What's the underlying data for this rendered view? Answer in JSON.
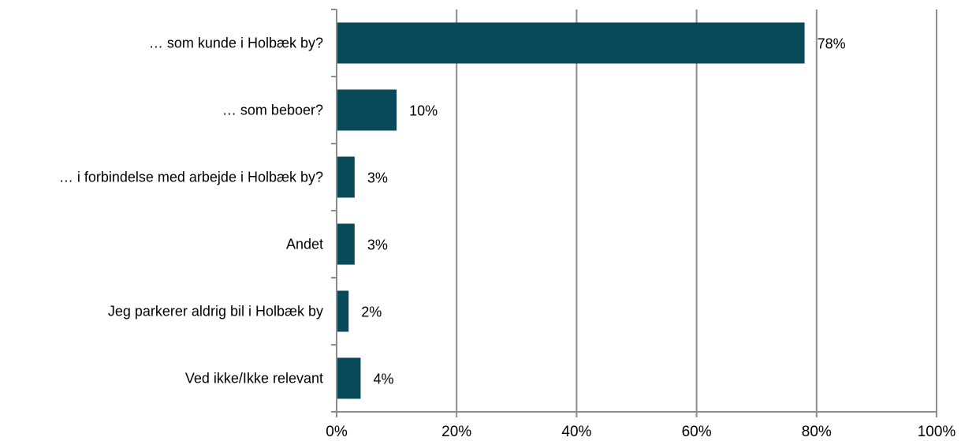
{
  "chart_data": {
    "type": "bar",
    "orientation": "horizontal",
    "title": "",
    "xlabel": "",
    "ylabel": "",
    "categories": [
      "… som kunde i Holbæk by?",
      "… som beboer?",
      "… i forbindelse med arbejde i Holbæk by?",
      "Andet",
      "Jeg parkerer aldrig bil i Holbæk by",
      "Ved ikke/Ikke relevant"
    ],
    "values": [
      78,
      10,
      3,
      3,
      2,
      4
    ],
    "value_labels": [
      "78%",
      "10%",
      "3%",
      "3%",
      "2%",
      "4%"
    ],
    "xlim": [
      0,
      100
    ],
    "x_ticks": [
      0,
      20,
      40,
      60,
      80,
      100
    ],
    "x_tick_labels": [
      "0%",
      "20%",
      "40%",
      "60%",
      "80%",
      "100%"
    ],
    "grid": "vertical",
    "legend": "none",
    "colors": {
      "bar": "#08495a",
      "grid": "#8c8c8c",
      "axis": "#8c8c8c",
      "text": "#000000"
    }
  }
}
